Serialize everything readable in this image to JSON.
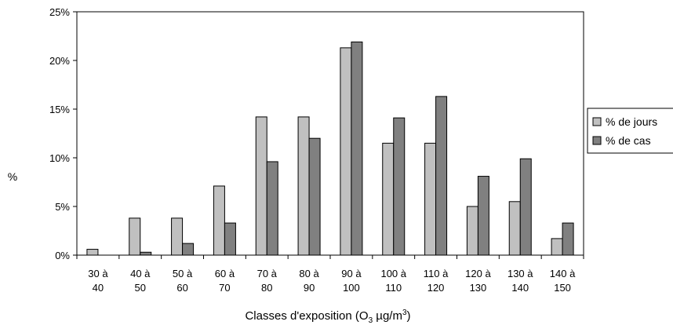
{
  "chart_data": {
    "type": "bar",
    "categories": [
      [
        "30 à",
        "40"
      ],
      [
        "40 à",
        "50"
      ],
      [
        "50 à",
        "60"
      ],
      [
        "60 à",
        "70"
      ],
      [
        "70 à",
        "80"
      ],
      [
        "80 à",
        "90"
      ],
      [
        "90 à",
        "100"
      ],
      [
        "100 à",
        "110"
      ],
      [
        "110 à",
        "120"
      ],
      [
        "120 à",
        "130"
      ],
      [
        "130 à",
        "140"
      ],
      [
        "140 à",
        "150"
      ]
    ],
    "series": [
      {
        "name": "% de jours",
        "color": "#c0c0c0",
        "values": [
          0.6,
          3.8,
          3.8,
          7.1,
          14.2,
          14.2,
          21.3,
          11.5,
          11.5,
          5.0,
          5.5,
          1.7
        ]
      },
      {
        "name": "% de cas",
        "color": "#808080",
        "values": [
          0.0,
          0.3,
          1.2,
          3.3,
          9.6,
          12.0,
          21.9,
          14.1,
          16.3,
          8.1,
          9.9,
          3.3
        ]
      }
    ],
    "ylabel": "%",
    "xlabel_parts": {
      "main": "Classes d'exposition (O",
      "sub": "3",
      "unit": " µg/m",
      "sup": "3",
      "close": ")"
    },
    "yticks": [
      "0%",
      "5%",
      "10%",
      "15%",
      "20%",
      "25%"
    ],
    "ylim": [
      0,
      25
    ],
    "grid": false,
    "legend_position": "right"
  }
}
